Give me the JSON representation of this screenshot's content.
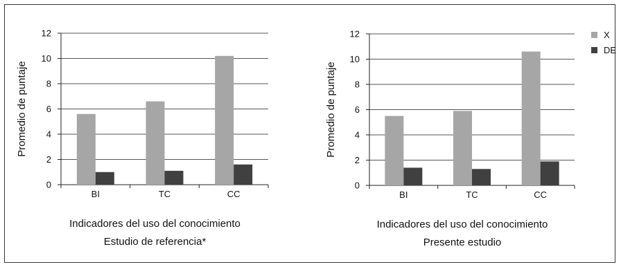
{
  "colors": {
    "X": "#a6a6a6",
    "DE": "#404040",
    "grid": "#555555",
    "frame": "#333333"
  },
  "legend": {
    "items": [
      "X",
      "DE"
    ]
  },
  "chart_data": [
    {
      "type": "bar",
      "categories": [
        "BI",
        "TC",
        "CC"
      ],
      "series": [
        {
          "name": "X",
          "values": [
            5.6,
            6.6,
            10.2
          ]
        },
        {
          "name": "DE",
          "values": [
            1.0,
            1.1,
            1.6
          ]
        }
      ],
      "ylim": [
        0,
        12
      ],
      "yticks": [
        "0",
        "2",
        "4",
        "6",
        "8",
        "10",
        "12"
      ],
      "ylabel": "Promedio de puntaje",
      "xlabel": "Indicadores del uso del conocimiento",
      "subtitle": "Estudio de referencia*",
      "grid": true
    },
    {
      "type": "bar",
      "categories": [
        "BI",
        "TC",
        "CC"
      ],
      "series": [
        {
          "name": "X",
          "values": [
            5.5,
            5.9,
            10.6
          ]
        },
        {
          "name": "DE",
          "values": [
            1.4,
            1.3,
            1.9
          ]
        }
      ],
      "ylim": [
        0,
        12
      ],
      "yticks": [
        "0",
        "2",
        "4",
        "6",
        "8",
        "10",
        "12"
      ],
      "ylabel": "Promedio de puntaje",
      "xlabel": "Indicadores del uso del conocimiento",
      "subtitle": "Presente estudio",
      "grid": true
    }
  ]
}
